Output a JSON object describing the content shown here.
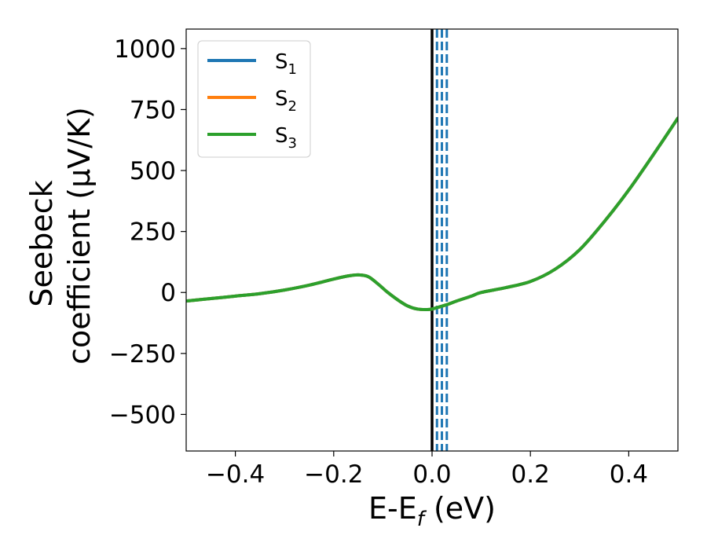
{
  "chart_data": {
    "type": "line",
    "xlabel": {
      "main": "E-E",
      "sub": "f",
      "suffix": " (eV)"
    },
    "ylabel": {
      "line1": "Seebeck",
      "line2": "coefficient  (μV/K)"
    },
    "xlim": [
      -0.5,
      0.5
    ],
    "ylim": [
      -650,
      1080
    ],
    "xticks": [
      -0.4,
      -0.2,
      0.0,
      0.2,
      0.4
    ],
    "xtick_labels": [
      "−0.4",
      "−0.2",
      "0.0",
      "0.2",
      "0.4"
    ],
    "yticks": [
      -500,
      -250,
      0,
      250,
      500,
      750,
      1000
    ],
    "ytick_labels": [
      "−500",
      "−250",
      "0",
      "250",
      "500",
      "750",
      "1000"
    ],
    "grid": false,
    "legend_position": "top-left",
    "series": [
      {
        "name": "S",
        "sub": "1",
        "color": "#1f77b4",
        "share_curve": true
      },
      {
        "name": "S",
        "sub": "2",
        "color": "#ff7f0e",
        "share_curve": true
      },
      {
        "name": "S",
        "sub": "3",
        "color": "#2ca02c",
        "share_curve": true
      }
    ],
    "curve": {
      "x": [
        -0.5,
        -0.45,
        -0.4,
        -0.35,
        -0.3,
        -0.25,
        -0.2,
        -0.17,
        -0.15,
        -0.13,
        -0.11,
        -0.09,
        -0.07,
        -0.05,
        -0.03,
        -0.01,
        0.0,
        0.01,
        0.03,
        0.05,
        0.08,
        0.1,
        0.15,
        0.2,
        0.25,
        0.3,
        0.35,
        0.4,
        0.45,
        0.5
      ],
      "y": [
        -35,
        -25,
        -15,
        -5,
        10,
        30,
        55,
        68,
        72,
        65,
        35,
        0,
        -30,
        -55,
        -68,
        -70,
        -68,
        -62,
        -50,
        -35,
        -15,
        0,
        20,
        45,
        95,
        175,
        290,
        420,
        565,
        715
      ]
    },
    "vertical_lines": [
      {
        "x": 0.0,
        "color": "#000000",
        "style": "solid"
      },
      {
        "x": 0.01,
        "color": "#1f77b4",
        "style": "dashed"
      },
      {
        "x": 0.02,
        "color": "#1f77b4",
        "style": "dashed"
      },
      {
        "x": 0.03,
        "color": "#1f77b4",
        "style": "dashed"
      }
    ]
  }
}
